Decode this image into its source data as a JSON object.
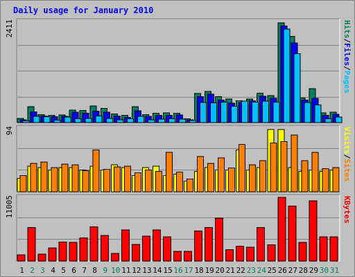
{
  "title": "Daily usage for January 2010",
  "colors": {
    "frame_bg": "#c0c0c0",
    "plot_bg": "#c0c0c0",
    "title": "#0000ff",
    "hits": "#00805c",
    "files": "#0000ff",
    "pages": "#00c0ff",
    "visits": "#ffff00",
    "sites": "#ff8000",
    "kbytes": "#ff0000",
    "weekday": "#000000",
    "weekend": "#00805c",
    "slash": "#000000"
  },
  "chart_data": [
    {
      "type": "bar",
      "name": "hits-files-pages",
      "max_label": "2411",
      "ymax": 2411,
      "axis_legend": [
        {
          "text": "Hits",
          "color_key": "hits"
        },
        {
          "text": "/",
          "color_key": "slash"
        },
        {
          "text": "Files",
          "color_key": "files"
        },
        {
          "text": "/",
          "color_key": "slash"
        },
        {
          "text": "Pages",
          "color_key": "pages"
        }
      ],
      "series": [
        {
          "name": "Hits",
          "color_key": "hits",
          "values": [
            100,
            380,
            190,
            170,
            180,
            300,
            290,
            400,
            340,
            210,
            170,
            380,
            190,
            220,
            230,
            220,
            90,
            690,
            740,
            620,
            560,
            520,
            560,
            700,
            640,
            2380,
            2060,
            590,
            810,
            230,
            250
          ]
        },
        {
          "name": "Files",
          "color_key": "files",
          "values": [
            70,
            260,
            160,
            140,
            150,
            250,
            220,
            270,
            250,
            160,
            120,
            280,
            150,
            170,
            170,
            180,
            70,
            620,
            680,
            540,
            460,
            480,
            520,
            630,
            580,
            2300,
            1900,
            540,
            580,
            170,
            200
          ]
        },
        {
          "name": "Pages",
          "color_key": "pages",
          "values": [
            40,
            150,
            140,
            60,
            130,
            90,
            100,
            160,
            100,
            70,
            90,
            150,
            70,
            80,
            90,
            80,
            50,
            480,
            470,
            490,
            390,
            510,
            490,
            510,
            490,
            2230,
            1640,
            480,
            420,
            90,
            130
          ]
        }
      ]
    },
    {
      "type": "bar",
      "name": "visits-sites",
      "max_label": "94",
      "ymax": 94,
      "axis_legend": [
        {
          "text": "Visits",
          "color_key": "visits"
        },
        {
          "text": "/",
          "color_key": "slash"
        },
        {
          "text": "Sites",
          "color_key": "sites"
        }
      ],
      "series": [
        {
          "name": "Visits",
          "color_key": "visits",
          "values": [
            20,
            38,
            36,
            32,
            36,
            36,
            32,
            38,
            32,
            40,
            36,
            24,
            36,
            38,
            24,
            26,
            16,
            30,
            36,
            32,
            32,
            62,
            32,
            36,
            92,
            92,
            36,
            30,
            32,
            30,
            32
          ]
        },
        {
          "name": "Sites",
          "color_key": "sites",
          "values": [
            24,
            42,
            44,
            36,
            41,
            40,
            31,
            62,
            33,
            37,
            38,
            28,
            32,
            30,
            58,
            29,
            19,
            52,
            42,
            50,
            35,
            70,
            40,
            46,
            72,
            74,
            84,
            46,
            58,
            34,
            36
          ]
        }
      ]
    },
    {
      "type": "bar",
      "name": "kbytes",
      "max_label": "11005",
      "ymax": 11005,
      "axis_legend": [
        {
          "text": "KBytes",
          "color_key": "kbytes"
        }
      ],
      "series": [
        {
          "name": "KBytes",
          "color_key": "kbytes",
          "values": [
            1100,
            5800,
            1200,
            2300,
            3300,
            3200,
            4000,
            5900,
            4400,
            1300,
            5400,
            2900,
            4300,
            5400,
            4200,
            1700,
            1700,
            5200,
            5800,
            7400,
            2000,
            2600,
            2400,
            5800,
            2800,
            11000,
            9500,
            3200,
            10400,
            4200,
            4200
          ]
        }
      ]
    }
  ],
  "days": [
    "1",
    "2",
    "3",
    "4",
    "5",
    "6",
    "7",
    "8",
    "9",
    "10",
    "11",
    "12",
    "13",
    "14",
    "15",
    "16",
    "17",
    "18",
    "19",
    "20",
    "21",
    "22",
    "23",
    "24",
    "25",
    "26",
    "27",
    "28",
    "29",
    "30",
    "31"
  ],
  "weekend_days": [
    "2",
    "3",
    "9",
    "10",
    "16",
    "17",
    "23",
    "24",
    "30",
    "31"
  ]
}
